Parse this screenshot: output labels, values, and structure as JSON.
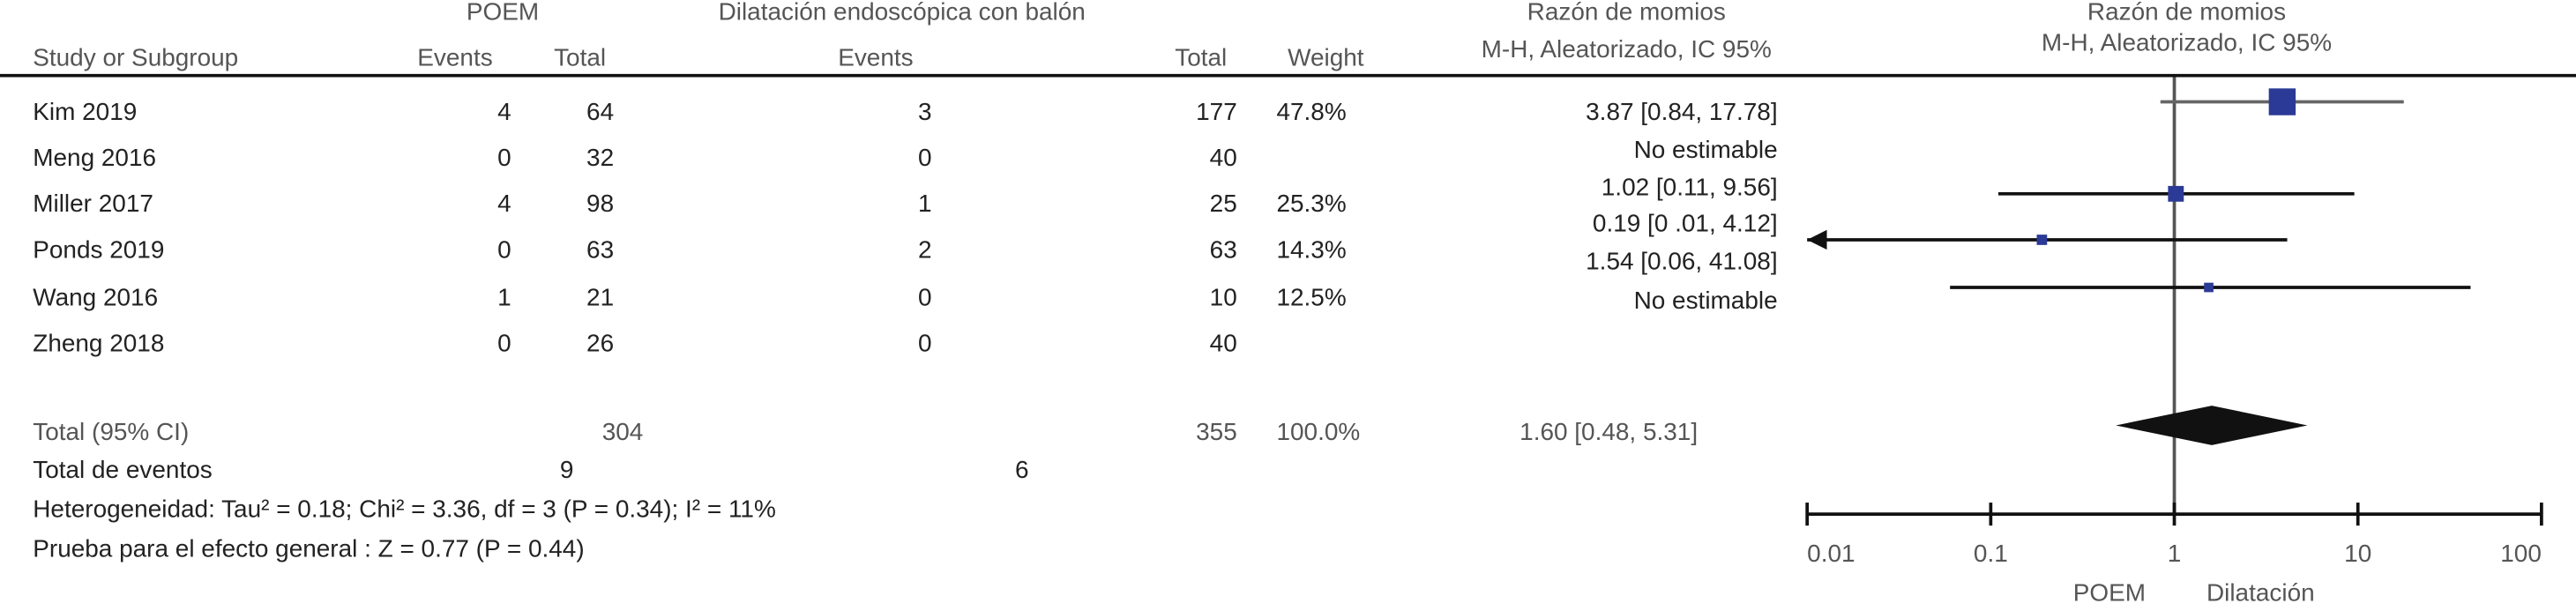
{
  "chart_data": {
    "type": "forest",
    "group1": "POEM",
    "group2": "Dilatación endoscópica con balón",
    "effect_title": "Razón de momios",
    "effect_subtitle": "M-H, Aleatorizado, IC 95%",
    "plot_title": "Razón de momios",
    "plot_subtitle": "M-H, Aleatorizado, IC 95%",
    "columns": {
      "study": "Study or Subgroup",
      "events1": "Events",
      "total1": "Total",
      "events2": "Events",
      "total2": "Total",
      "weight": "Weight"
    },
    "studies": [
      {
        "name": "Kim 2019",
        "events1": 4,
        "total1": 64,
        "events2": 3,
        "total2": 177,
        "weight": 47.8,
        "weight_label": "47.8%",
        "or": 3.87,
        "lo": 0.84,
        "hi": 17.78,
        "ci_label": "3.87 [0.84, 17.78]"
      },
      {
        "name": "Meng 2016",
        "events1": 0,
        "total1": 32,
        "events2": 0,
        "total2": 40,
        "ci_label": "No estimable"
      },
      {
        "name": "Miller 2017",
        "events1": 4,
        "total1": 98,
        "events2": 1,
        "total2": 25,
        "weight": 25.3,
        "weight_label": "25.3%",
        "or": 1.02,
        "lo": 0.11,
        "hi": 9.56,
        "ci_label": "1.02 [0.11, 9.56]"
      },
      {
        "name": "Ponds 2019",
        "events1": 0,
        "total1": 63,
        "events2": 2,
        "total2": 63,
        "weight": 14.3,
        "weight_label": "14.3%",
        "or": 0.19,
        "lo": 0.01,
        "hi": 4.12,
        "ci_label": "0.19 [0 .01, 4.12]"
      },
      {
        "name": "Wang 2016",
        "events1": 1,
        "total1": 21,
        "events2": 0,
        "total2": 10,
        "weight": 12.5,
        "weight_label": "12.5%",
        "or": 1.54,
        "lo": 0.06,
        "hi": 41.08,
        "ci_label": "1.54 [0.06, 41.08]"
      },
      {
        "name": "Zheng 2018",
        "events1": 0,
        "total1": 26,
        "events2": 0,
        "total2": 40,
        "ci_label": "No estimable"
      }
    ],
    "total": {
      "label": "Total  (95% CI)",
      "total1": 304,
      "total2": 355,
      "weight": 100.0,
      "weight_label": "100.0%",
      "or": 1.6,
      "lo": 0.48,
      "hi": 5.31,
      "ci_label": "1.60 [0.48, 5.31]"
    },
    "events_label": "Total de eventos",
    "events1_total": 9,
    "events2_total": 6,
    "heterogeneity": "Heterogeneidad: Tau² = 0.18;  Chi² = 3.36,  df = 3  (P = 0.34);  I² = 11%",
    "overall": "Prueba para el efecto general  : Z = 0.77 (P = 0.44)",
    "log_scale": true,
    "xlim": [
      0.01,
      100
    ],
    "xticks": [
      0.01,
      0.1,
      1,
      10,
      100
    ],
    "favours": [
      "POEM",
      "Dilatación"
    ],
    "marker_color": "#2b3a96"
  }
}
